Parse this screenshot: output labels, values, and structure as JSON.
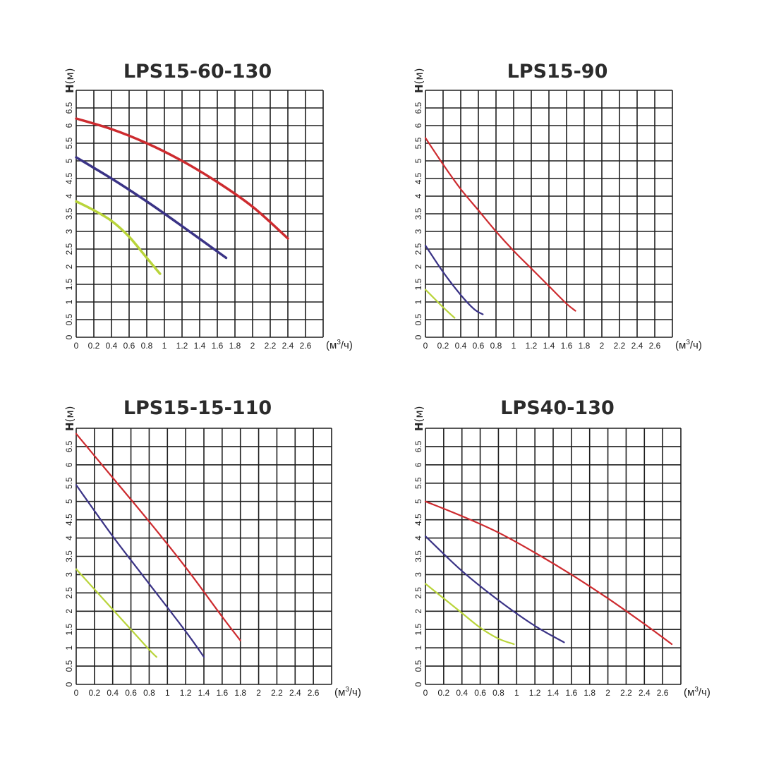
{
  "colors": {
    "red": "#cd2b2f",
    "blue": "#3a3386",
    "green": "#b9d43a",
    "grid": "#1f1f1f"
  },
  "chart_data": [
    {
      "type": "line",
      "title": "LPS15-60-130",
      "ylabel_main": "H",
      "ylabel_unit": "(м)",
      "xunit": "(м",
      "xunit_sup": "3",
      "xunit_tail": "/ч)",
      "xlim": [
        0,
        2.8
      ],
      "ylim": [
        0,
        7
      ],
      "xticks": [
        "0",
        "0.2",
        "0.4",
        "0.6",
        "0.8",
        "1",
        "1.2",
        "1.4",
        "1.6",
        "1.8",
        "2",
        "2.2",
        "2.4",
        "2.6"
      ],
      "yticks": [
        "0",
        "0.5",
        "1",
        "1.5",
        "2",
        "2.5",
        "3",
        "3.5",
        "4",
        "4.5",
        "5",
        "5.5",
        "6",
        "6.5"
      ],
      "series": [
        {
          "color": "red",
          "points": [
            [
              0,
              6.2
            ],
            [
              0.4,
              5.9
            ],
            [
              0.8,
              5.5
            ],
            [
              1.2,
              5.0
            ],
            [
              1.6,
              4.4
            ],
            [
              2.0,
              3.7
            ],
            [
              2.4,
              2.8
            ]
          ]
        },
        {
          "color": "blue",
          "points": [
            [
              0,
              5.1
            ],
            [
              0.4,
              4.5
            ],
            [
              0.8,
              3.85
            ],
            [
              1.2,
              3.15
            ],
            [
              1.7,
              2.25
            ]
          ]
        },
        {
          "color": "green",
          "points": [
            [
              0,
              3.85
            ],
            [
              0.2,
              3.6
            ],
            [
              0.4,
              3.3
            ],
            [
              0.6,
              2.85
            ],
            [
              0.8,
              2.25
            ],
            [
              0.95,
              1.8
            ]
          ]
        }
      ]
    },
    {
      "type": "line",
      "title": "LPS15-90",
      "ylabel_main": "H",
      "ylabel_unit": "(м)",
      "xunit": "(м",
      "xunit_sup": "3",
      "xunit_tail": "/ч)",
      "xlim": [
        0,
        2.8
      ],
      "ylim": [
        0,
        7
      ],
      "xticks": [
        "0",
        "0.2",
        "0.4",
        "0.6",
        "0.8",
        "1",
        "1.2",
        "1.4",
        "1.6",
        "1.8",
        "2",
        "2.2",
        "2.4",
        "2.6"
      ],
      "yticks": [
        "0",
        "0.5",
        "1",
        "1.5",
        "2",
        "2.5",
        "3",
        "3.5",
        "4",
        "4.5",
        "5",
        "5.5",
        "6",
        "6.5"
      ],
      "series": [
        {
          "color": "red",
          "points": [
            [
              0,
              5.65
            ],
            [
              0.2,
              4.9
            ],
            [
              0.4,
              4.2
            ],
            [
              0.6,
              3.6
            ],
            [
              0.8,
              3.0
            ],
            [
              1.0,
              2.45
            ],
            [
              1.2,
              1.95
            ],
            [
              1.4,
              1.45
            ],
            [
              1.6,
              0.95
            ],
            [
              1.7,
              0.75
            ]
          ]
        },
        {
          "color": "blue",
          "points": [
            [
              0,
              2.6
            ],
            [
              0.2,
              1.85
            ],
            [
              0.4,
              1.2
            ],
            [
              0.55,
              0.8
            ],
            [
              0.65,
              0.65
            ]
          ]
        },
        {
          "color": "green",
          "points": [
            [
              0,
              1.35
            ],
            [
              0.1,
              1.1
            ],
            [
              0.2,
              0.85
            ],
            [
              0.33,
              0.55
            ]
          ]
        }
      ]
    },
    {
      "type": "line",
      "title": "LPS15-15-110",
      "ylabel_main": "H",
      "ylabel_unit": "(м)",
      "xunit": "(м",
      "xunit_sup": "3",
      "xunit_tail": "/ч)",
      "xlim": [
        0,
        2.8
      ],
      "ylim": [
        0,
        7
      ],
      "xticks": [
        "0",
        "0.2",
        "0.4",
        "0.6",
        "0.8",
        "1",
        "1.2",
        "1.4",
        "1.6",
        "1.8",
        "2",
        "2.2",
        "2.4",
        "2.6"
      ],
      "yticks": [
        "0",
        "0.5",
        "1",
        "1.5",
        "2",
        "2.5",
        "3",
        "3.5",
        "4",
        "4.5",
        "5",
        "5.5",
        "6",
        "6.5"
      ],
      "series": [
        {
          "color": "red",
          "points": [
            [
              0,
              6.85
            ],
            [
              0.4,
              5.65
            ],
            [
              0.8,
              4.45
            ],
            [
              1.2,
              3.2
            ],
            [
              1.6,
              1.85
            ],
            [
              1.8,
              1.2
            ]
          ]
        },
        {
          "color": "blue",
          "points": [
            [
              0,
              5.45
            ],
            [
              0.4,
              4.05
            ],
            [
              0.8,
              2.75
            ],
            [
              1.2,
              1.45
            ],
            [
              1.4,
              0.75
            ]
          ]
        },
        {
          "color": "green",
          "points": [
            [
              0,
              3.15
            ],
            [
              0.2,
              2.6
            ],
            [
              0.4,
              2.05
            ],
            [
              0.6,
              1.5
            ],
            [
              0.8,
              0.95
            ],
            [
              0.88,
              0.75
            ]
          ]
        }
      ]
    },
    {
      "type": "line",
      "title": "LPS40-130",
      "ylabel_main": "H",
      "ylabel_unit": "(м)",
      "xunit": "(м",
      "xunit_sup": "3",
      "xunit_tail": "/ч)",
      "xlim": [
        0,
        2.8
      ],
      "ylim": [
        0,
        7
      ],
      "xticks": [
        "0",
        "0.2",
        "0.4",
        "0.6",
        "0.8",
        "1",
        "1.2",
        "1.4",
        "1.6",
        "1.8",
        "2",
        "2.2",
        "2.4",
        "2.6"
      ],
      "yticks": [
        "0",
        "0.5",
        "1",
        "1.5",
        "2",
        "2.5",
        "3",
        "3.5",
        "4",
        "4.5",
        "5",
        "5.5",
        "6",
        "6.5"
      ],
      "series": [
        {
          "color": "red",
          "points": [
            [
              0,
              5.0
            ],
            [
              0.4,
              4.6
            ],
            [
              0.8,
              4.15
            ],
            [
              1.2,
              3.6
            ],
            [
              1.6,
              3.0
            ],
            [
              2.0,
              2.35
            ],
            [
              2.4,
              1.65
            ],
            [
              2.7,
              1.1
            ]
          ]
        },
        {
          "color": "blue",
          "points": [
            [
              0,
              4.05
            ],
            [
              0.4,
              3.1
            ],
            [
              0.8,
              2.3
            ],
            [
              1.2,
              1.6
            ],
            [
              1.52,
              1.15
            ]
          ]
        },
        {
          "color": "green",
          "points": [
            [
              0,
              2.75
            ],
            [
              0.2,
              2.35
            ],
            [
              0.4,
              1.95
            ],
            [
              0.6,
              1.55
            ],
            [
              0.8,
              1.25
            ],
            [
              0.97,
              1.1
            ]
          ]
        }
      ]
    }
  ]
}
